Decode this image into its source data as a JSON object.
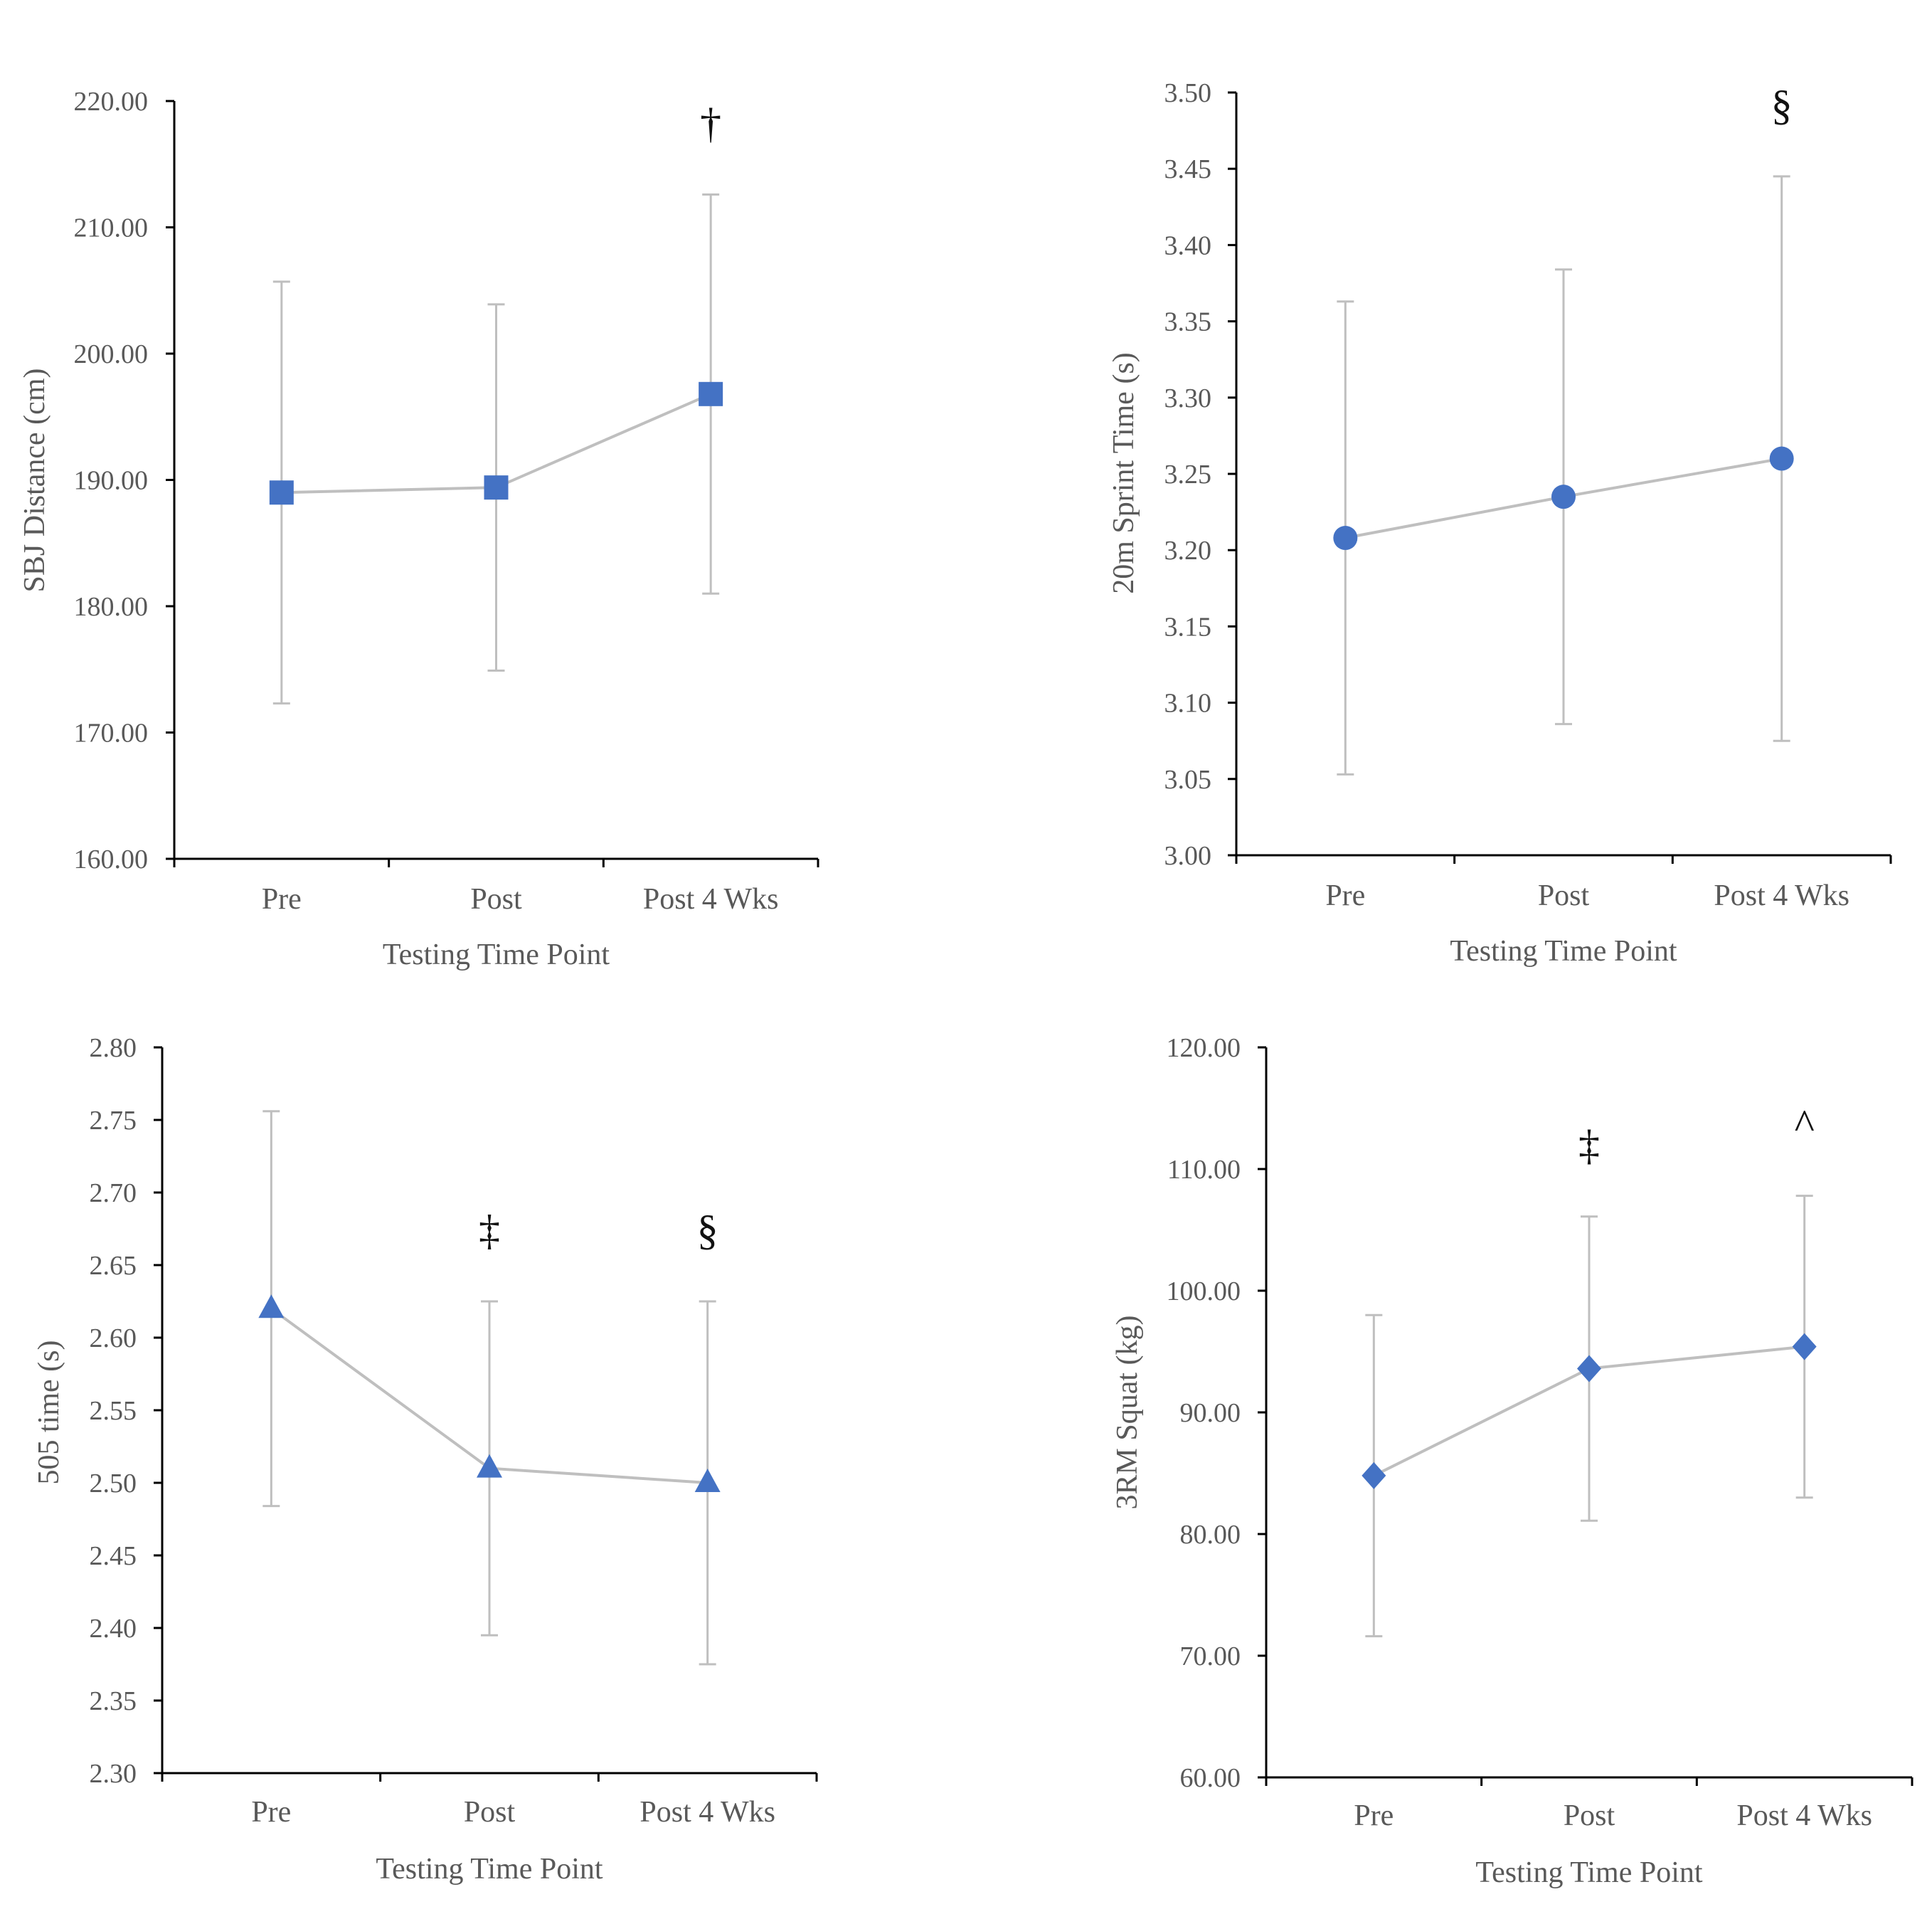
{
  "chart_data": [
    {
      "type": "line",
      "title": "",
      "xlabel": "Testing Time Point",
      "ylabel": "SBJ Distance (cm)",
      "categories": [
        "Pre",
        "Post",
        "Post 4 Wks"
      ],
      "values": [
        189.0,
        189.4,
        196.8
      ],
      "error": [
        16.7,
        14.5,
        15.8
      ],
      "ylim": [
        160,
        220
      ],
      "yticks": [
        "160.00",
        "170.00",
        "180.00",
        "190.00",
        "200.00",
        "210.00",
        "220.00"
      ],
      "marker": "square",
      "annotations": [
        {
          "category": "Post 4 Wks",
          "text": "†"
        }
      ]
    },
    {
      "type": "line",
      "title": "",
      "xlabel": "Testing Time Point",
      "ylabel": "20m Sprint Time (s)",
      "categories": [
        "Pre",
        "Post",
        "Post 4 Wks"
      ],
      "values": [
        3.208,
        3.235,
        3.26
      ],
      "error": [
        0.155,
        0.149,
        0.185
      ],
      "ylim": [
        3.0,
        3.5
      ],
      "yticks": [
        "3.00",
        "3.05",
        "3.10",
        "3.15",
        "3.20",
        "3.25",
        "3.30",
        "3.35",
        "3.40",
        "3.45",
        "3.50"
      ],
      "marker": "circle",
      "annotations": [
        {
          "category": "Post 4 Wks",
          "text": "§"
        }
      ]
    },
    {
      "type": "line",
      "title": "",
      "xlabel": "Testing Time Point",
      "ylabel": "505 time (s)",
      "categories": [
        "Pre",
        "Post",
        "Post 4 Wks"
      ],
      "values": [
        2.62,
        2.51,
        2.5
      ],
      "error": [
        0.136,
        0.115,
        0.125
      ],
      "ylim": [
        2.3,
        2.8
      ],
      "yticks": [
        "2.30",
        "2.35",
        "2.40",
        "2.45",
        "2.50",
        "2.55",
        "2.60",
        "2.65",
        "2.70",
        "2.75",
        "2.80"
      ],
      "marker": "triangle",
      "annotations": [
        {
          "category": "Post",
          "text": "‡"
        },
        {
          "category": "Post 4 Wks",
          "text": "§"
        }
      ]
    },
    {
      "type": "line",
      "title": "",
      "xlabel": "Testing Time Point",
      "ylabel": "3RM Squat (kg)",
      "categories": [
        "Pre",
        "Post",
        "Post 4 Wks"
      ],
      "values": [
        84.8,
        93.6,
        95.4
      ],
      "error": [
        13.2,
        12.5,
        12.4
      ],
      "ylim": [
        60,
        120
      ],
      "yticks": [
        "60.00",
        "70.00",
        "80.00",
        "90.00",
        "100.00",
        "110.00",
        "120.00"
      ],
      "marker": "diamond",
      "annotations": [
        {
          "category": "Post",
          "text": "‡"
        },
        {
          "category": "Post 4 Wks",
          "text": "^"
        }
      ]
    }
  ],
  "colors": {
    "marker": "#4472C4",
    "line": "#BFBFBF",
    "axis": "#000000",
    "text": "#595959"
  }
}
